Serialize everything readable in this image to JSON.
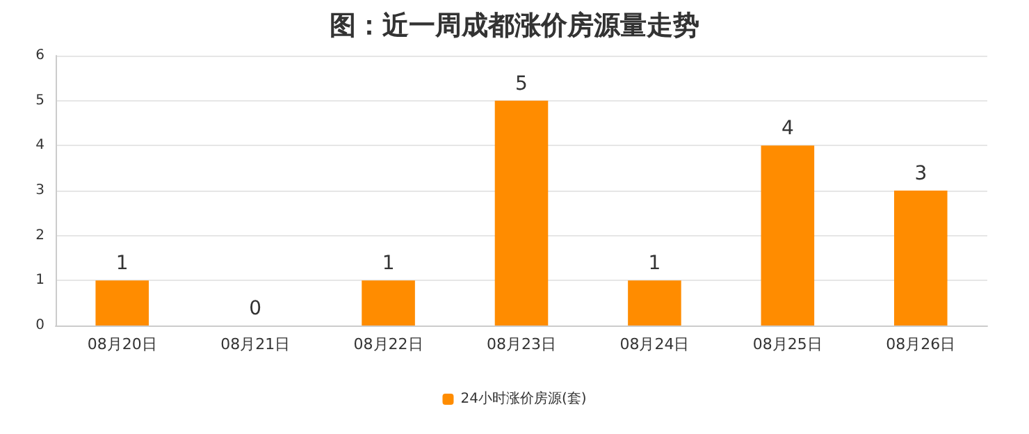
{
  "chart_data": {
    "type": "bar",
    "title": "图：近一周成都涨价房源量走势",
    "categories": [
      "08月20日",
      "08月21日",
      "08月22日",
      "08月23日",
      "08月24日",
      "08月25日",
      "08月26日"
    ],
    "series": [
      {
        "name": "24小时涨价房源(套)",
        "color": "#ff8c00",
        "values": [
          1,
          0,
          1,
          5,
          1,
          4,
          3
        ]
      }
    ],
    "ylim": [
      0,
      6
    ],
    "yticks": [
      0,
      1,
      2,
      3,
      4,
      5,
      6
    ],
    "grid": "y",
    "legend": "bottom",
    "data_labels": true
  }
}
